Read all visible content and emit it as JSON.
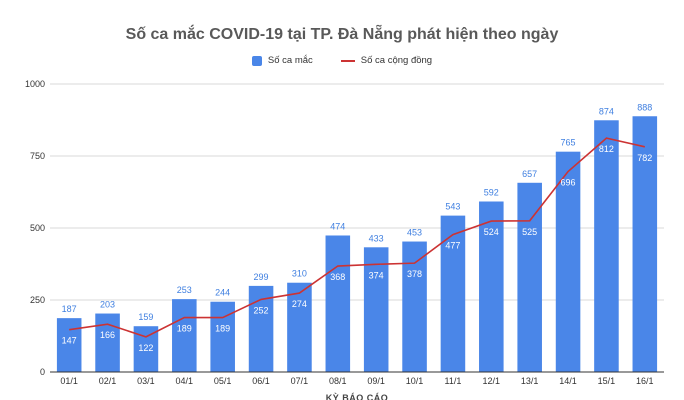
{
  "chart_data": {
    "type": "bar",
    "title": "Số ca mắc COVID-19 tại TP. Đà Nẵng phát hiện theo ngày",
    "xlabel": "KỲ BÁO CÁO",
    "ylabel": "",
    "categories": [
      "01/1",
      "02/1",
      "03/1",
      "04/1",
      "05/1",
      "06/1",
      "07/1",
      "08/1",
      "09/1",
      "10/1",
      "11/1",
      "12/1",
      "13/1",
      "14/1",
      "15/1",
      "16/1"
    ],
    "y_ticks": [
      0,
      250,
      500,
      750,
      1000
    ],
    "ylim": [
      0,
      1000
    ],
    "grid": true,
    "legend_position": "top",
    "series": [
      {
        "name": "Số ca mắc",
        "type": "bar",
        "color": "#4a86e8",
        "values": [
          187,
          203,
          159,
          253,
          244,
          299,
          310,
          474,
          433,
          453,
          543,
          592,
          657,
          765,
          874,
          888
        ]
      },
      {
        "name": "Số ca cộng đồng",
        "type": "line",
        "color": "#cc3333",
        "values": [
          147,
          166,
          122,
          189,
          189,
          252,
          274,
          368,
          374,
          378,
          477,
          524,
          525,
          696,
          812,
          782
        ]
      }
    ]
  }
}
